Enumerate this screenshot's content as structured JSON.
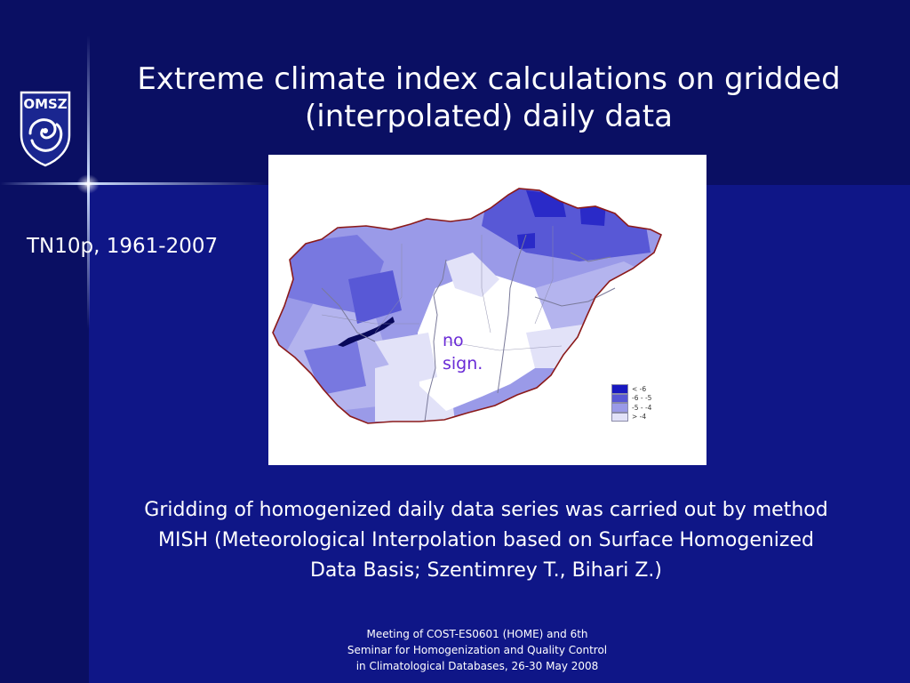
{
  "slide": {
    "title_line1": "Extreme climate index calculations on gridded",
    "title_line2": "(interpolated) daily data",
    "subtitle": "TN10p, 1961-2007",
    "logo_text": "OMSZ",
    "body_text": "Gridding of homogenized daily data series was carried out by method MISH (Meteorological Interpolation based on Surface Homogenized Data Basis; Szentimrey T., Bihari Z.)",
    "footer_line1": "Meeting of COST-ES0601 (HOME) and 6th",
    "footer_line2": "Seminar for Homogenization and Quality Control",
    "footer_line3": "in Climatological Databases, 26-30 May 2008"
  },
  "map": {
    "region": "Hungary",
    "annotation_line1": "no",
    "annotation_line2": "sign.",
    "legend": [
      {
        "label": "< -6",
        "color": "#1818c0"
      },
      {
        "label": "-6 - -5",
        "color": "#5858d6"
      },
      {
        "label": "-5 - -4",
        "color": "#9a9ae8"
      },
      {
        "label": "> -4",
        "color": "#e2e2f8"
      }
    ],
    "colors": {
      "border": "#8b1a1a",
      "rivers": "#7a7a9a",
      "lake": "#08085a",
      "no_sign_area": "#ffffff"
    }
  },
  "colors": {
    "background": "#0f1687",
    "background_dark": "#0a0f63",
    "annotation": "#6a2bd6",
    "text": "#ffffff"
  }
}
